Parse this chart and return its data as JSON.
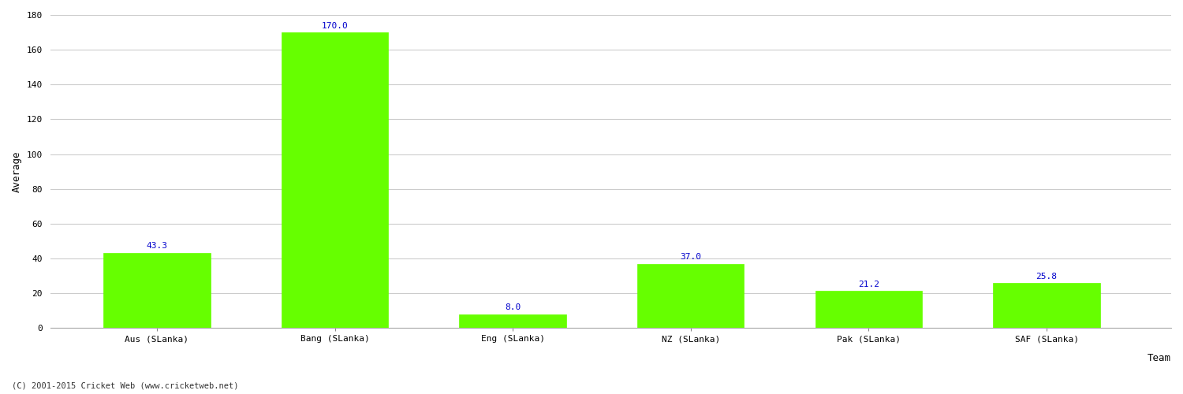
{
  "categories": [
    "Aus (SLanka)",
    "Bang (SLanka)",
    "Eng (SLanka)",
    "NZ (SLanka)",
    "Pak (SLanka)",
    "SAF (SLanka)"
  ],
  "values": [
    43.3,
    170.0,
    8.0,
    37.0,
    21.2,
    25.8
  ],
  "bar_color": "#66ff00",
  "bar_edge_color": "#66ff00",
  "label_color": "#0000cc",
  "xlabel": "Team",
  "ylabel": "Average",
  "ylim": [
    0,
    180
  ],
  "yticks": [
    0,
    20,
    40,
    60,
    80,
    100,
    120,
    140,
    160,
    180
  ],
  "grid_color": "#cccccc",
  "background_color": "#ffffff",
  "label_fontsize": 8,
  "axis_fontsize": 9,
  "tick_fontsize": 8,
  "footer_text": "(C) 2001-2015 Cricket Web (www.cricketweb.net)",
  "footer_fontsize": 7.5,
  "bar_width": 0.6
}
